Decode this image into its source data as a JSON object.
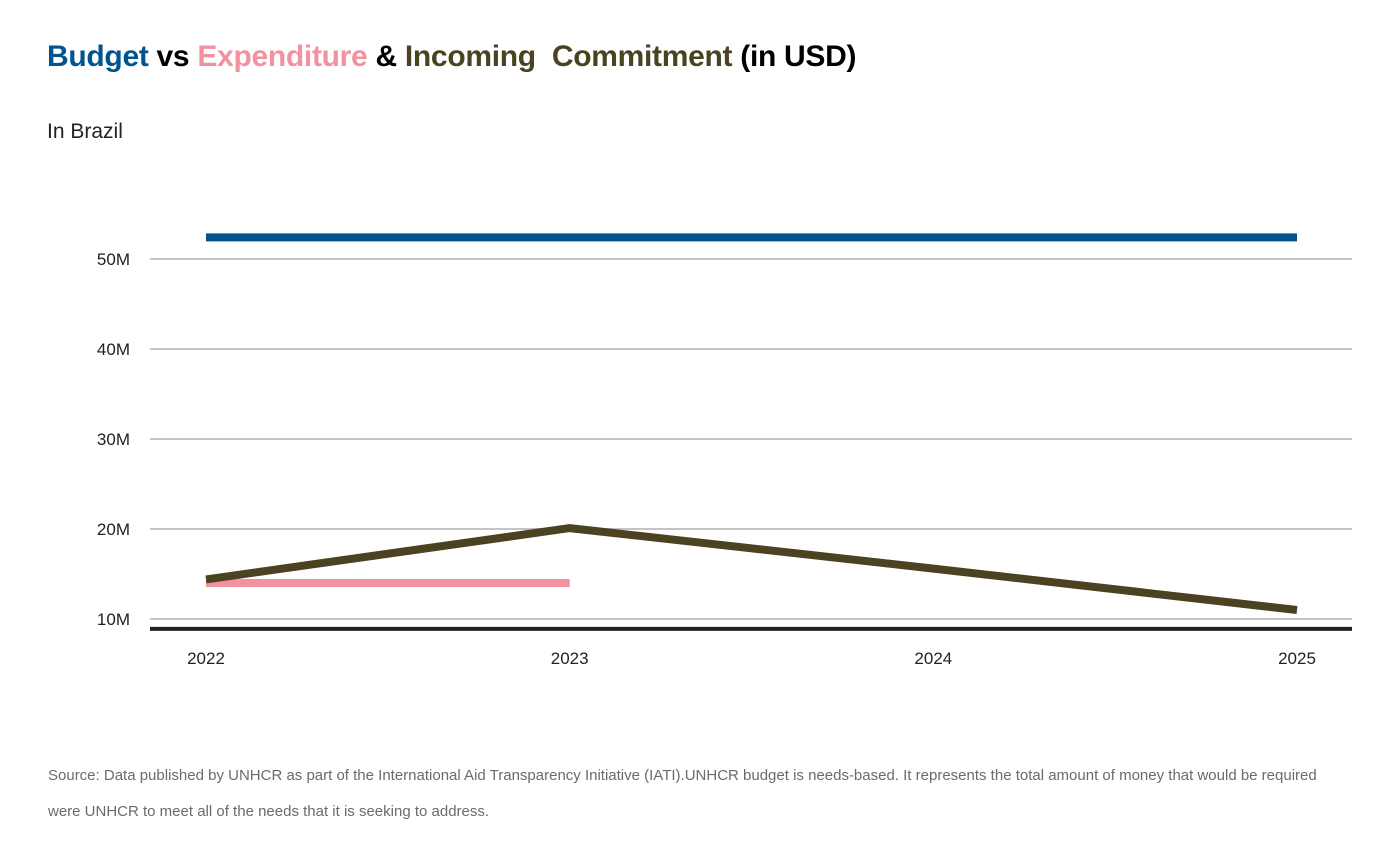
{
  "title": {
    "parts": [
      {
        "text": "Budget",
        "color": "#005490"
      },
      {
        "text": " vs ",
        "color": "#000000"
      },
      {
        "text": "Expenditure",
        "color": "#F2929F"
      },
      {
        "text": " & ",
        "color": "#000000"
      },
      {
        "text": "Incoming  Commitment",
        "color": "#4B4222"
      },
      {
        "text": " (in USD)",
        "color": "#000000"
      }
    ]
  },
  "subtitle": "In Brazil",
  "source_note": "Source: Data published by UNHCR as part of the International  Aid Transparency Initiative (IATI).UNHCR budget is needs-based. It represents the total amount of money that would be required were UNHCR to meet all of the needs that it is seeking to address.",
  "chart_data": {
    "type": "line",
    "title": "Budget vs Expenditure & Incoming Commitment (in USD)",
    "subtitle": "In Brazil",
    "xlabel": "",
    "ylabel": "",
    "categories": [
      "2022",
      "2023",
      "2024",
      "2025"
    ],
    "y_ticks": [
      10,
      20,
      30,
      40,
      50
    ],
    "y_tick_labels": [
      "10M",
      "20M",
      "30M",
      "40M",
      "50M"
    ],
    "y_unit": "M USD",
    "ylim": [
      8.9,
      55
    ],
    "grid": true,
    "series": [
      {
        "name": "Budget",
        "color": "#005490",
        "values": [
          52.4,
          52.4,
          52.4,
          52.4
        ]
      },
      {
        "name": "Expenditure",
        "color": "#F2929F",
        "values": [
          14.0,
          14.0,
          null,
          null
        ]
      },
      {
        "name": "Incoming Commitment",
        "color": "#4B4222",
        "values": [
          14.4,
          20.1,
          15.6,
          11.0
        ]
      }
    ]
  }
}
